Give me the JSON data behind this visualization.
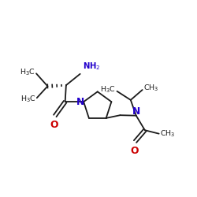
{
  "background": "#ffffff",
  "bc": "#1a1a1a",
  "nc": "#2200cc",
  "oc": "#cc0000",
  "tc": "#1a1a1a",
  "figsize": [
    2.5,
    2.5
  ],
  "dpi": 100,
  "lw": 1.3,
  "fs": 6.8,
  "xlim": [
    0,
    10
  ],
  "ylim": [
    1,
    8.5
  ]
}
